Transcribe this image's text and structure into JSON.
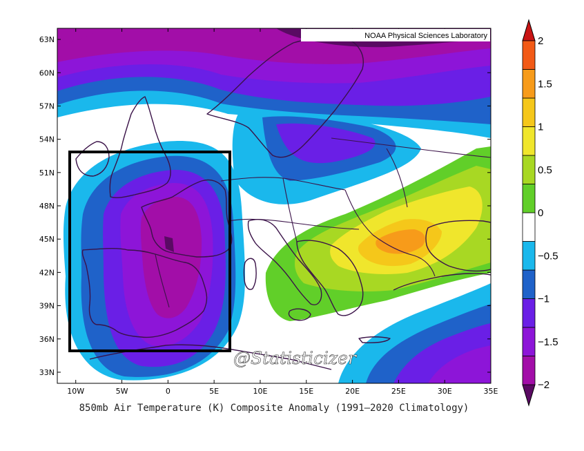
{
  "title": "850mb Air Temperature (K) Composite Anomaly (1991–2020 Climatology)",
  "credit": "NOAA Physical Sciences Laboratory",
  "watermark": "@Statisticizer",
  "map": {
    "projection": "cylindrical-equidistant",
    "lon_range": [
      -12,
      35
    ],
    "lat_range": [
      32,
      64
    ],
    "lon_ticks": [
      "10W",
      "5W",
      "0",
      "5E",
      "10E",
      "15E",
      "20E",
      "25E",
      "30E",
      "35E"
    ],
    "lat_ticks": [
      "63N",
      "60N",
      "57N",
      "54N",
      "51N",
      "48N",
      "45N",
      "42N",
      "39N",
      "36N",
      "33N"
    ],
    "highlight_box": {
      "lon": [
        -10.5,
        6.7
      ],
      "lat": [
        35,
        52.8
      ]
    }
  },
  "colorbar": {
    "labels": [
      "2",
      "1.5",
      "1",
      "0.5",
      "0",
      "−0.5",
      "−1",
      "−1.5",
      "−2"
    ],
    "colors": [
      "#5a0a63",
      "#a20ea8",
      "#8d15d8",
      "#6a1fe6",
      "#1f62c9",
      "#1ab8ec",
      "#ffffff",
      "#61cf29",
      "#a8d823",
      "#f0e62c",
      "#f5c71a",
      "#f79b1a",
      "#f25a16",
      "#c91414"
    ]
  }
}
